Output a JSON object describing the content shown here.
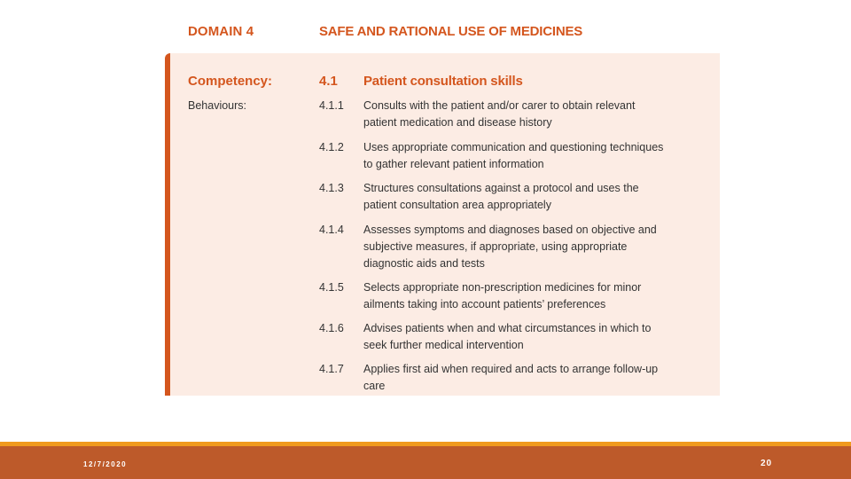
{
  "document": {
    "domain_label": "DOMAIN 4",
    "domain_title": "SAFE AND RATIONAL USE OF MEDICINES",
    "competency": {
      "label": "Competency:",
      "number": "4.1",
      "title": "Patient consultation skills"
    },
    "behaviours_label": "Behaviours:",
    "behaviours": [
      {
        "number": "4.1.1",
        "text": "Consults with the patient and/or carer to obtain relevant patient medication and disease history"
      },
      {
        "number": "4.1.2",
        "text": "Uses appropriate communication and questioning techniques to gather relevant patient information"
      },
      {
        "number": "4.1.3",
        "text": "Structures consultations against a protocol and uses the patient consultation area appropriately"
      },
      {
        "number": "4.1.4",
        "text": "Assesses symptoms and diagnoses based on objective and subjective measures, if appropriate, using appropriate diagnostic aids and tests"
      },
      {
        "number": "4.1.5",
        "text": "Selects appropriate non-prescription medicines for minor ailments taking into account patients’ preferences"
      },
      {
        "number": "4.1.6",
        "text": "Advises patients when and what circumstances in which to seek further medical intervention"
      },
      {
        "number": "4.1.7",
        "text": "Applies first aid when required and acts to arrange follow-up care"
      }
    ]
  },
  "footer": {
    "date": "12/7/2020",
    "page_number": "20"
  },
  "colors": {
    "accent": "#d4561e",
    "panel_bg": "#fcece4",
    "footer_bar": "#bd5a2a",
    "footer_line": "#f09a1e"
  }
}
